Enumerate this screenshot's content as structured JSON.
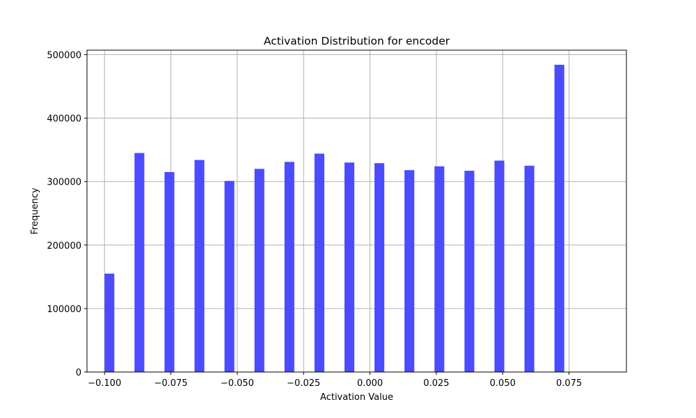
{
  "chart_data": {
    "type": "bar",
    "title": "Activation Distribution for encoder",
    "xlabel": "Activation Value",
    "ylabel": "Frequency",
    "xlim": [
      -0.1066,
      0.0966
    ],
    "ylim": [
      0,
      507000
    ],
    "grid": true,
    "bar_color": "#4b4bff",
    "x_ticks": [
      -0.1,
      -0.075,
      -0.05,
      -0.025,
      0.0,
      0.025,
      0.05,
      0.075
    ],
    "x_tick_labels": [
      "−0.100",
      "−0.075",
      "−0.050",
      "−0.025",
      "0.000",
      "0.025",
      "0.050",
      "0.075"
    ],
    "y_ticks": [
      0,
      100000,
      200000,
      300000,
      400000,
      500000
    ],
    "y_tick_labels": [
      "0",
      "100000",
      "200000",
      "300000",
      "400000",
      "500000"
    ],
    "bar_width": 0.0037,
    "bins": [
      {
        "x": -0.1,
        "value": 155000
      },
      {
        "x": -0.0887,
        "value": 345000
      },
      {
        "x": -0.0774,
        "value": 315000
      },
      {
        "x": -0.0661,
        "value": 334000
      },
      {
        "x": -0.0548,
        "value": 301000
      },
      {
        "x": -0.0435,
        "value": 320000
      },
      {
        "x": -0.0322,
        "value": 331000
      },
      {
        "x": -0.0209,
        "value": 344000
      },
      {
        "x": -0.0096,
        "value": 330000
      },
      {
        "x": 0.0017,
        "value": 329000
      },
      {
        "x": 0.013,
        "value": 318000
      },
      {
        "x": 0.0243,
        "value": 324000
      },
      {
        "x": 0.0356,
        "value": 317000
      },
      {
        "x": 0.0469,
        "value": 333000
      },
      {
        "x": 0.0582,
        "value": 325000
      },
      {
        "x": 0.0695,
        "value": 484000
      }
    ]
  }
}
